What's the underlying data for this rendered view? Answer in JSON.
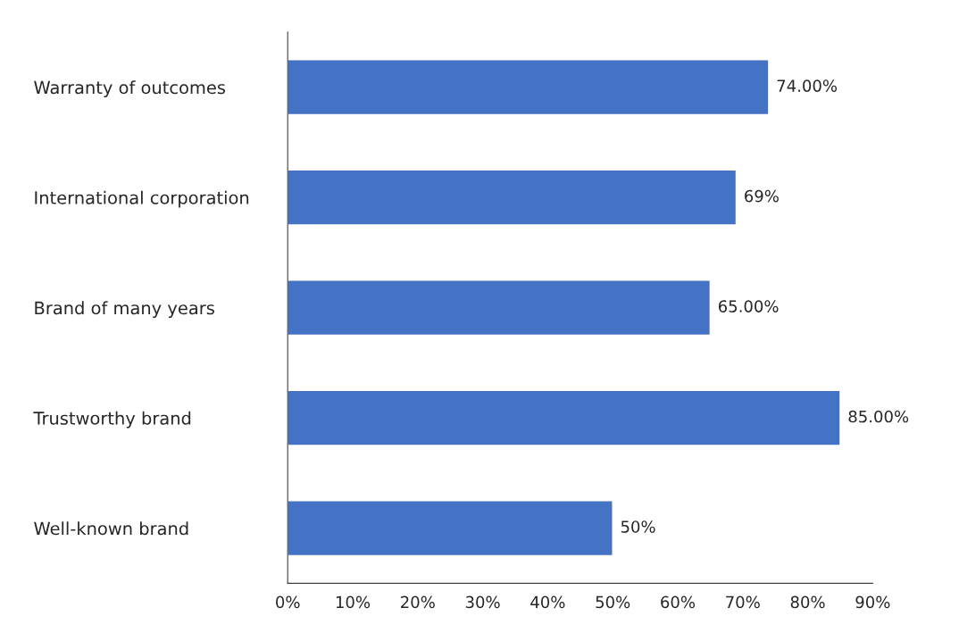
{
  "chart_data": {
    "type": "bar",
    "orientation": "horizontal",
    "categories": [
      "Warranty of outcomes",
      "International corporation",
      "Brand of many years",
      "Trustworthy brand",
      "Well-known brand"
    ],
    "values": [
      74,
      69,
      65,
      85,
      50
    ],
    "value_labels": [
      "74.00%",
      "69%",
      "65.00%",
      "85.00%",
      "50%"
    ],
    "color": "#4472c4",
    "xlim": [
      0,
      90
    ],
    "xticks": [
      {
        "value": 0,
        "label": "0%"
      },
      {
        "value": 10,
        "label": "10%"
      },
      {
        "value": 20,
        "label": "20%"
      },
      {
        "value": 30,
        "label": "30%"
      },
      {
        "value": 40,
        "label": "40%"
      },
      {
        "value": 50,
        "label": "50%"
      },
      {
        "value": 60,
        "label": "60%"
      },
      {
        "value": 70,
        "label": "70%"
      },
      {
        "value": 80,
        "label": "80%"
      },
      {
        "value": 90,
        "label": "90%"
      }
    ],
    "grid": false,
    "legend": false
  }
}
